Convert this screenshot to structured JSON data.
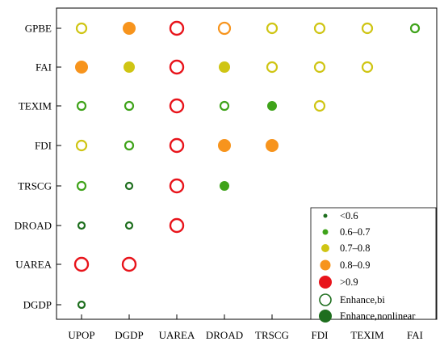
{
  "chart_data": {
    "type": "scatter",
    "title": "",
    "xlabel": "",
    "ylabel": "",
    "x_categories": [
      "UPOP",
      "DGDP",
      "UAREA",
      "DROAD",
      "TRSCG",
      "FDI",
      "TEXIM",
      "FAI"
    ],
    "y_categories": [
      "GPBE",
      "FAI",
      "TEXIM",
      "FDI",
      "TRSCG",
      "DROAD",
      "UAREA",
      "DGDP"
    ],
    "legend_position": "bottom-right",
    "value_classes": [
      {
        "label": "<0.6",
        "color": "#1e6e1e"
      },
      {
        "label": "0.6–0.7",
        "color": "#3fa31a"
      },
      {
        "label": "0.7–0.8",
        "color": "#cfc514"
      },
      {
        "label": "0.8–0.9",
        "color": "#f7941d"
      },
      {
        "label": ">0.9",
        "color": "#e8141b"
      }
    ],
    "interaction_types": [
      {
        "label": "Enhance,bi",
        "marker": "hollow"
      },
      {
        "label": "Enhance,nonlinear",
        "marker": "filled"
      }
    ],
    "points": [
      {
        "x": "UPOP",
        "y": "GPBE",
        "class": 2,
        "type": "bi"
      },
      {
        "x": "DGDP",
        "y": "GPBE",
        "class": 3,
        "type": "nonlinear"
      },
      {
        "x": "UAREA",
        "y": "GPBE",
        "class": 4,
        "type": "bi"
      },
      {
        "x": "DROAD",
        "y": "GPBE",
        "class": 3,
        "type": "bi"
      },
      {
        "x": "TRSCG",
        "y": "GPBE",
        "class": 2,
        "type": "bi"
      },
      {
        "x": "FDI",
        "y": "GPBE",
        "class": 2,
        "type": "bi"
      },
      {
        "x": "TEXIM",
        "y": "GPBE",
        "class": 2,
        "type": "bi"
      },
      {
        "x": "FAI",
        "y": "GPBE",
        "class": 1,
        "type": "bi"
      },
      {
        "x": "UPOP",
        "y": "FAI",
        "class": 3,
        "type": "nonlinear"
      },
      {
        "x": "DGDP",
        "y": "FAI",
        "class": 2,
        "type": "nonlinear"
      },
      {
        "x": "UAREA",
        "y": "FAI",
        "class": 4,
        "type": "bi"
      },
      {
        "x": "DROAD",
        "y": "FAI",
        "class": 2,
        "type": "nonlinear"
      },
      {
        "x": "TRSCG",
        "y": "FAI",
        "class": 2,
        "type": "bi"
      },
      {
        "x": "FDI",
        "y": "FAI",
        "class": 2,
        "type": "bi"
      },
      {
        "x": "TEXIM",
        "y": "FAI",
        "class": 2,
        "type": "bi"
      },
      {
        "x": "UPOP",
        "y": "TEXIM",
        "class": 1,
        "type": "bi"
      },
      {
        "x": "DGDP",
        "y": "TEXIM",
        "class": 1,
        "type": "bi"
      },
      {
        "x": "UAREA",
        "y": "TEXIM",
        "class": 4,
        "type": "bi"
      },
      {
        "x": "DROAD",
        "y": "TEXIM",
        "class": 1,
        "type": "bi"
      },
      {
        "x": "TRSCG",
        "y": "TEXIM",
        "class": 1,
        "type": "nonlinear"
      },
      {
        "x": "FDI",
        "y": "TEXIM",
        "class": 2,
        "type": "bi"
      },
      {
        "x": "UPOP",
        "y": "FDI",
        "class": 2,
        "type": "bi"
      },
      {
        "x": "DGDP",
        "y": "FDI",
        "class": 1,
        "type": "bi"
      },
      {
        "x": "UAREA",
        "y": "FDI",
        "class": 4,
        "type": "bi"
      },
      {
        "x": "DROAD",
        "y": "FDI",
        "class": 3,
        "type": "nonlinear"
      },
      {
        "x": "TRSCG",
        "y": "FDI",
        "class": 3,
        "type": "nonlinear"
      },
      {
        "x": "UPOP",
        "y": "TRSCG",
        "class": 1,
        "type": "bi"
      },
      {
        "x": "DGDP",
        "y": "TRSCG",
        "class": 0,
        "type": "bi"
      },
      {
        "x": "UAREA",
        "y": "TRSCG",
        "class": 4,
        "type": "bi"
      },
      {
        "x": "DROAD",
        "y": "TRSCG",
        "class": 1,
        "type": "nonlinear"
      },
      {
        "x": "UPOP",
        "y": "DROAD",
        "class": 0,
        "type": "bi"
      },
      {
        "x": "DGDP",
        "y": "DROAD",
        "class": 0,
        "type": "bi"
      },
      {
        "x": "UAREA",
        "y": "DROAD",
        "class": 4,
        "type": "bi"
      },
      {
        "x": "UPOP",
        "y": "UAREA",
        "class": 4,
        "type": "bi"
      },
      {
        "x": "DGDP",
        "y": "UAREA",
        "class": 4,
        "type": "bi"
      },
      {
        "x": "UPOP",
        "y": "DGDP",
        "class": 0,
        "type": "bi"
      }
    ]
  }
}
